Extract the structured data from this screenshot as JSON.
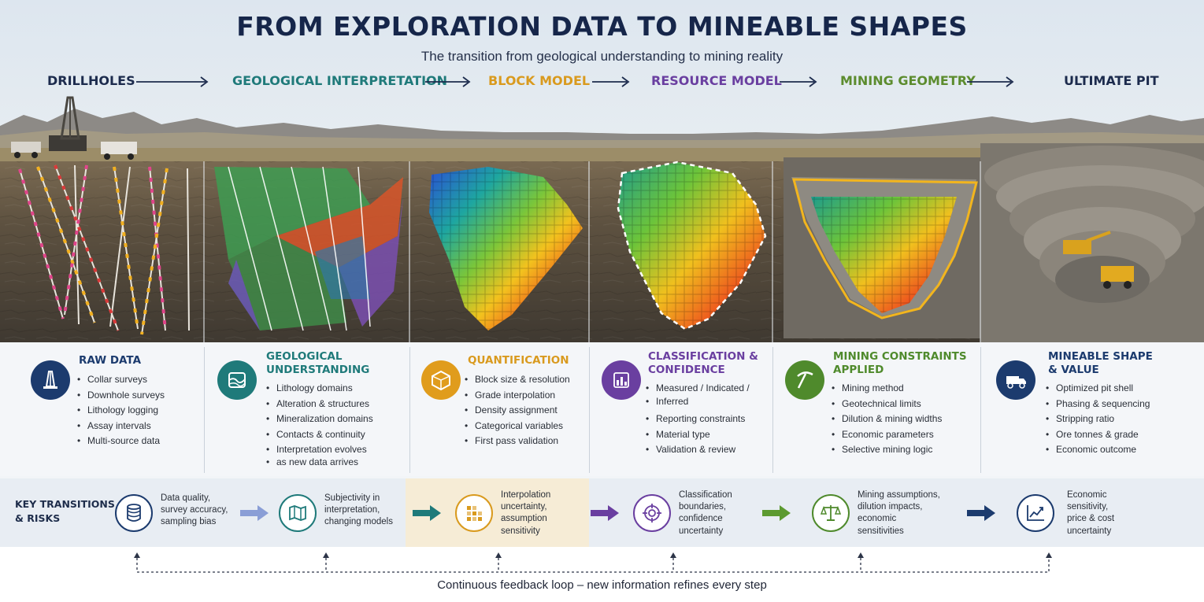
{
  "header": {
    "title": "FROM EXPLORATION DATA TO MINEABLE SHAPES",
    "subtitle": "The transition from geological understanding to mining reality"
  },
  "stages": [
    {
      "label": "DRILLHOLES",
      "color": "#1c2b4d"
    },
    {
      "label": "GEOLOGICAL INTERPRETATION",
      "color": "#1f7a7a"
    },
    {
      "label": "BLOCK MODEL",
      "color": "#d99a1e"
    },
    {
      "label": "RESOURCE MODEL",
      "color": "#6a3fa0"
    },
    {
      "label": "MINING GEOMETRY",
      "color": "#5c8c2e"
    },
    {
      "label": "ULTIMATE PIT",
      "color": "#1c2b4d"
    }
  ],
  "panels": [
    {
      "title_lines": [
        "RAW DATA"
      ],
      "icon": "drill-rig-icon",
      "color": "#1c3b6e",
      "items": [
        "Collar surveys",
        "Downhole surveys",
        "Lithology logging",
        "Assay intervals",
        "Multi-source data"
      ]
    },
    {
      "title_lines": [
        "GEOLOGICAL",
        "UNDERSTANDING"
      ],
      "icon": "geology-layers-icon",
      "color": "#1f7a7a",
      "items": [
        "Lithology domains",
        "Alteration & structures",
        "Mineralization domains",
        "Contacts & continuity",
        "Interpretation evolves",
        "as new data arrives"
      ]
    },
    {
      "title_lines": [
        "QUANTIFICATION"
      ],
      "icon": "cube-blocks-icon",
      "color": "#d99a1e",
      "items": [
        "Block size & resolution",
        "Grade interpolation",
        "Density assignment",
        "Categorical variables",
        "First pass validation"
      ]
    },
    {
      "title_lines": [
        "CLASSIFICATION &",
        "CONFIDENCE"
      ],
      "icon": "bar-chart-icon",
      "color": "#6a3fa0",
      "items": [
        "Measured / Indicated /",
        "Inferred",
        "Reporting constraints",
        "Material type",
        "Validation & review"
      ]
    },
    {
      "title_lines": [
        "MINING CONSTRAINTS",
        "APPLIED"
      ],
      "icon": "pickaxe-icon",
      "color": "#4f8a2c",
      "items": [
        "Mining method",
        "Geotechnical limits",
        "Dilution & mining widths",
        "Economic parameters",
        "Selective mining logic"
      ]
    },
    {
      "title_lines": [
        "MINEABLE SHAPE",
        "& VALUE"
      ],
      "icon": "haul-truck-icon",
      "color": "#1c3b6e",
      "items": [
        "Optimized pit shell",
        "Phasing & sequencing",
        "Stripping ratio",
        "Ore tonnes & grade",
        "Economic outcome"
      ]
    }
  ],
  "risks": {
    "label_lines": [
      "KEY TRANSITIONS",
      "& RISKS"
    ],
    "items": [
      {
        "icon": "database-icon",
        "color": "#1c3b6e",
        "lines": [
          "Data quality,",
          "survey accuracy,",
          "sampling bias"
        ]
      },
      {
        "icon": "map-icon",
        "color": "#1f7a7a",
        "lines": [
          "Subjectivity in",
          "interpretation,",
          "changing models"
        ]
      },
      {
        "icon": "grid-blocks-icon",
        "color": "#d99a1e",
        "lines": [
          "Interpolation",
          "uncertainty,",
          "assumption",
          "sensitivity"
        ]
      },
      {
        "icon": "target-icon",
        "color": "#6a3fa0",
        "lines": [
          "Classification",
          "boundaries,",
          "confidence",
          "uncertainty"
        ]
      },
      {
        "icon": "scales-icon",
        "color": "#4f8a2c",
        "lines": [
          "Mining assumptions,",
          "dilution impacts,",
          "economic",
          "sensitivities"
        ]
      },
      {
        "icon": "trend-chart-icon",
        "color": "#1c3b6e",
        "lines": [
          "Economic",
          "sensitivity,",
          "price & cost",
          "uncertainty"
        ]
      }
    ]
  },
  "feedback": {
    "text": "Continuous feedback loop – new information refines every step"
  }
}
